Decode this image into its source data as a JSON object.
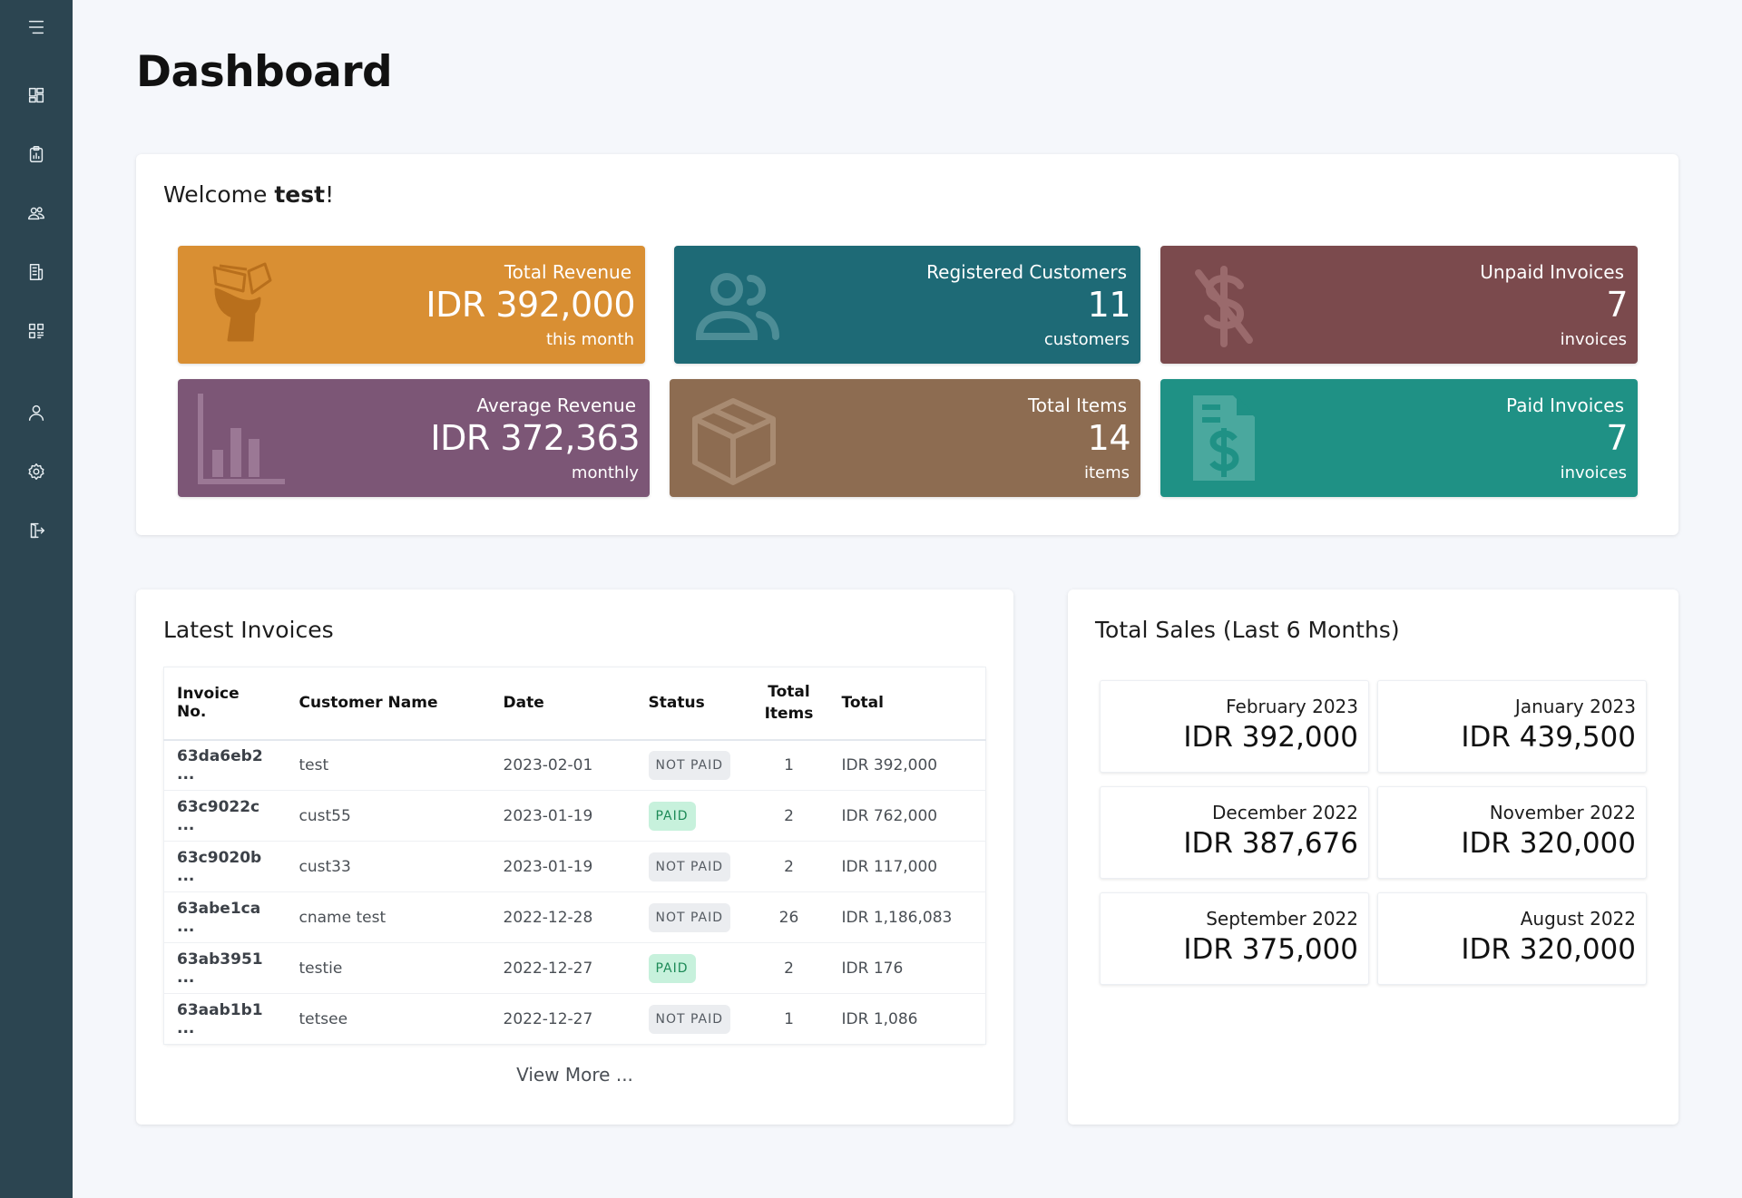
{
  "sidebar": {
    "items": [
      {
        "name": "menu-icon"
      },
      {
        "name": "dashboard-icon"
      },
      {
        "name": "clipboard-report-icon"
      },
      {
        "name": "customers-icon"
      },
      {
        "name": "invoice-icon"
      },
      {
        "name": "qr-code-icon"
      },
      {
        "name": "user-icon"
      },
      {
        "name": "settings-icon"
      },
      {
        "name": "logout-icon"
      }
    ]
  },
  "page": {
    "title": "Dashboard"
  },
  "welcome": {
    "prefix": "Welcome ",
    "user": "test",
    "suffix": "!"
  },
  "stats": [
    {
      "label": "Total Revenue",
      "value": "IDR 392,000",
      "sub": "this month",
      "color": "#d98f33",
      "icon": "money-hand-icon"
    },
    {
      "label": "Registered Customers",
      "value": "11",
      "sub": "customers",
      "color": "#1e6a76",
      "icon": "customers-icon"
    },
    {
      "label": "Unpaid Invoices",
      "value": "7",
      "sub": "invoices",
      "color": "#7b4a4d",
      "icon": "no-dollar-icon"
    },
    {
      "label": "Average Revenue",
      "value": "IDR 372,363",
      "sub": "monthly",
      "color": "#7c5676",
      "icon": "bar-chart-icon"
    },
    {
      "label": "Total Items",
      "value": "14",
      "sub": "items",
      "color": "#8d6c51",
      "icon": "box-icon"
    },
    {
      "label": "Paid Invoices",
      "value": "7",
      "sub": "invoices",
      "color": "#1f9185",
      "icon": "invoice-dollar-icon"
    }
  ],
  "invoices": {
    "title": "Latest Invoices",
    "columns": [
      "Invoice No.",
      "Customer Name",
      "Date",
      "Status",
      "Total Items",
      "Total"
    ],
    "column_total_items_lines": [
      "Total",
      "Items"
    ],
    "rows": [
      {
        "no": "63da6eb2 ...",
        "customer": "test",
        "date": "2023-02-01",
        "status": "NOT PAID",
        "items": "1",
        "total": "IDR 392,000"
      },
      {
        "no": "63c9022c ...",
        "customer": "cust55",
        "date": "2023-01-19",
        "status": "PAID",
        "items": "2",
        "total": "IDR 762,000"
      },
      {
        "no": "63c9020b ...",
        "customer": "cust33",
        "date": "2023-01-19",
        "status": "NOT PAID",
        "items": "2",
        "total": "IDR 117,000"
      },
      {
        "no": "63abe1ca ...",
        "customer": "cname test",
        "date": "2022-12-28",
        "status": "NOT PAID",
        "items": "26",
        "total": "IDR 1,186,083"
      },
      {
        "no": "63ab3951 ...",
        "customer": "testie",
        "date": "2022-12-27",
        "status": "PAID",
        "items": "2",
        "total": "IDR 176"
      },
      {
        "no": "63aab1b1 ...",
        "customer": "tetsee",
        "date": "2022-12-27",
        "status": "NOT PAID",
        "items": "1",
        "total": "IDR 1,086"
      }
    ],
    "view_more": "View More ..."
  },
  "sales": {
    "title": "Total Sales (Last 6 Months)",
    "months": [
      {
        "month": "February 2023",
        "value": "IDR 392,000"
      },
      {
        "month": "January 2023",
        "value": "IDR 439,500"
      },
      {
        "month": "December 2022",
        "value": "IDR 387,676"
      },
      {
        "month": "November 2022",
        "value": "IDR 320,000"
      },
      {
        "month": "September 2022",
        "value": "IDR 375,000"
      },
      {
        "month": "August 2022",
        "value": "IDR 320,000"
      }
    ]
  }
}
